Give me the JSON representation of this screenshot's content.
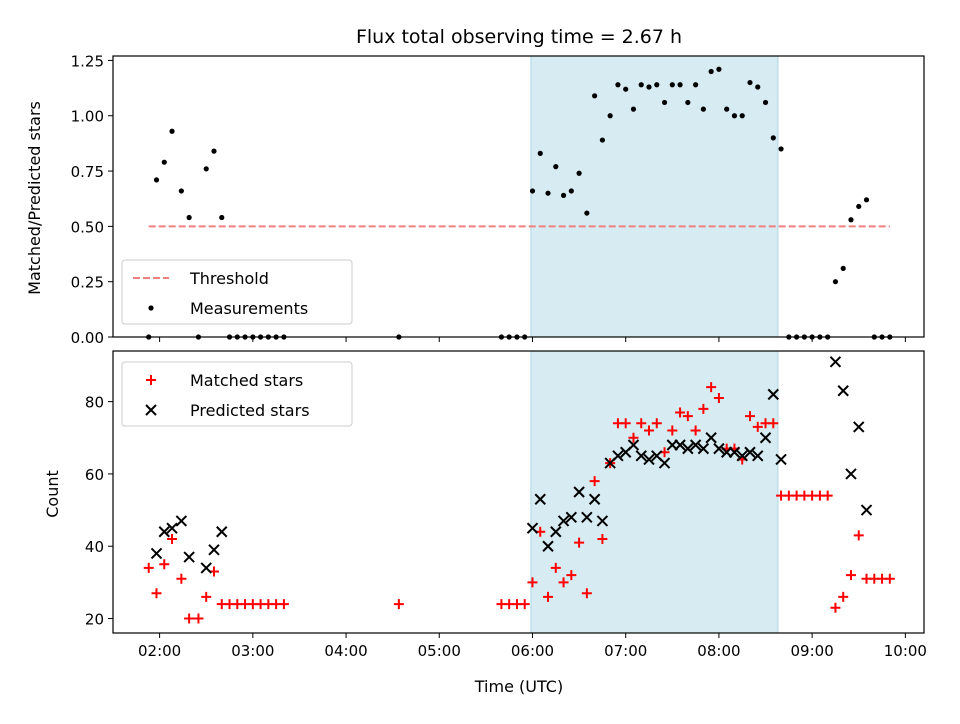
{
  "chart_data": [
    {
      "type": "scatter",
      "title": "Flux total observing time = 2.67 h",
      "ylabel": "Matched/Predicted stars",
      "ylim": [
        0,
        1.27
      ],
      "yticks": [
        "0.00",
        "0.25",
        "0.50",
        "0.75",
        "1.00",
        "1.25"
      ],
      "ytick_values": [
        0,
        0.25,
        0.5,
        0.75,
        1.0,
        1.25
      ],
      "shaded_region": [
        "05:59",
        "08:38"
      ],
      "threshold": {
        "name": "Threshold",
        "y": 0.5,
        "x_start": "01:53",
        "x_end": "09:50",
        "color": "#f08080"
      },
      "legend": [
        "Threshold",
        "Measurements"
      ],
      "legend_position": "lower-left",
      "series": [
        {
          "name": "Measurements",
          "color": "#000000",
          "points": [
            [
              "01:53",
              0
            ],
            [
              "01:58",
              0.71
            ],
            [
              "02:03",
              0.79
            ],
            [
              "02:08",
              0.93
            ],
            [
              "02:14",
              0.66
            ],
            [
              "02:19",
              0.54
            ],
            [
              "02:25",
              0
            ],
            [
              "02:30",
              0.76
            ],
            [
              "02:35",
              0.84
            ],
            [
              "02:40",
              0.54
            ],
            [
              "02:45",
              0
            ],
            [
              "02:50",
              0
            ],
            [
              "02:55",
              0
            ],
            [
              "03:00",
              0
            ],
            [
              "03:05",
              0
            ],
            [
              "03:10",
              0
            ],
            [
              "03:15",
              0
            ],
            [
              "03:20",
              0
            ],
            [
              "04:34",
              0
            ],
            [
              "05:40",
              0
            ],
            [
              "05:45",
              0
            ],
            [
              "05:50",
              0
            ],
            [
              "05:55",
              0
            ],
            [
              "06:00",
              0.66
            ],
            [
              "06:05",
              0.83
            ],
            [
              "06:10",
              0.65
            ],
            [
              "06:15",
              0.77
            ],
            [
              "06:20",
              0.64
            ],
            [
              "06:25",
              0.66
            ],
            [
              "06:30",
              0.74
            ],
            [
              "06:35",
              0.56
            ],
            [
              "06:40",
              1.09
            ],
            [
              "06:45",
              0.89
            ],
            [
              "06:50",
              1.0
            ],
            [
              "06:55",
              1.14
            ],
            [
              "07:00",
              1.12
            ],
            [
              "07:05",
              1.03
            ],
            [
              "07:10",
              1.14
            ],
            [
              "07:15",
              1.13
            ],
            [
              "07:20",
              1.14
            ],
            [
              "07:25",
              1.06
            ],
            [
              "07:30",
              1.14
            ],
            [
              "07:35",
              1.14
            ],
            [
              "07:40",
              1.06
            ],
            [
              "07:45",
              1.14
            ],
            [
              "07:50",
              1.03
            ],
            [
              "07:55",
              1.2
            ],
            [
              "08:00",
              1.21
            ],
            [
              "08:05",
              1.03
            ],
            [
              "08:10",
              1.0
            ],
            [
              "08:15",
              1.0
            ],
            [
              "08:20",
              1.15
            ],
            [
              "08:25",
              1.13
            ],
            [
              "08:30",
              1.06
            ],
            [
              "08:35",
              0.9
            ],
            [
              "08:40",
              0.85
            ],
            [
              "08:45",
              0
            ],
            [
              "08:50",
              0
            ],
            [
              "08:55",
              0
            ],
            [
              "09:00",
              0
            ],
            [
              "09:05",
              0
            ],
            [
              "09:10",
              0
            ],
            [
              "09:15",
              0.25
            ],
            [
              "09:20",
              0.31
            ],
            [
              "09:25",
              0.53
            ],
            [
              "09:30",
              0.59
            ],
            [
              "09:35",
              0.62
            ],
            [
              "09:40",
              0
            ],
            [
              "09:45",
              0
            ],
            [
              "09:50",
              0
            ]
          ]
        }
      ]
    },
    {
      "type": "scatter",
      "xlabel": "Time (UTC)",
      "ylabel": "Count",
      "ylim": [
        16,
        94
      ],
      "yticks": [
        "20",
        "40",
        "60",
        "80"
      ],
      "ytick_values": [
        20,
        40,
        60,
        80
      ],
      "xlim": [
        "01:30",
        "10:12"
      ],
      "xticks": [
        "02:00",
        "03:00",
        "04:00",
        "05:00",
        "06:00",
        "07:00",
        "08:00",
        "09:00",
        "10:00"
      ],
      "shaded_region": [
        "05:59",
        "08:38"
      ],
      "legend": [
        "Matched stars",
        "Predicted stars"
      ],
      "legend_position": "upper-left",
      "series": [
        {
          "name": "Matched stars",
          "color": "#ff0000",
          "points": [
            [
              "01:53",
              34
            ],
            [
              "01:58",
              27
            ],
            [
              "02:03",
              35
            ],
            [
              "02:08",
              42
            ],
            [
              "02:14",
              31
            ],
            [
              "02:19",
              20
            ],
            [
              "02:25",
              20
            ],
            [
              "02:30",
              26
            ],
            [
              "02:35",
              33
            ],
            [
              "02:40",
              24
            ],
            [
              "02:45",
              24
            ],
            [
              "02:50",
              24
            ],
            [
              "02:55",
              24
            ],
            [
              "03:00",
              24
            ],
            [
              "03:05",
              24
            ],
            [
              "03:10",
              24
            ],
            [
              "03:15",
              24
            ],
            [
              "03:20",
              24
            ],
            [
              "04:34",
              24
            ],
            [
              "05:40",
              24
            ],
            [
              "05:45",
              24
            ],
            [
              "05:50",
              24
            ],
            [
              "05:55",
              24
            ],
            [
              "06:00",
              30
            ],
            [
              "06:05",
              44
            ],
            [
              "06:10",
              26
            ],
            [
              "06:15",
              34
            ],
            [
              "06:20",
              30
            ],
            [
              "06:25",
              32
            ],
            [
              "06:30",
              41
            ],
            [
              "06:35",
              27
            ],
            [
              "06:40",
              58
            ],
            [
              "06:45",
              42
            ],
            [
              "06:50",
              63
            ],
            [
              "06:55",
              74
            ],
            [
              "07:00",
              74
            ],
            [
              "07:05",
              70
            ],
            [
              "07:10",
              74
            ],
            [
              "07:15",
              72
            ],
            [
              "07:20",
              74
            ],
            [
              "07:25",
              66
            ],
            [
              "07:30",
              72
            ],
            [
              "07:35",
              77
            ],
            [
              "07:40",
              76
            ],
            [
              "07:45",
              72
            ],
            [
              "07:50",
              78
            ],
            [
              "07:55",
              84
            ],
            [
              "08:00",
              81
            ],
            [
              "08:05",
              67
            ],
            [
              "08:10",
              67
            ],
            [
              "08:15",
              64
            ],
            [
              "08:20",
              76
            ],
            [
              "08:25",
              73
            ],
            [
              "08:30",
              74
            ],
            [
              "08:35",
              74
            ],
            [
              "08:40",
              54
            ],
            [
              "08:45",
              54
            ],
            [
              "08:50",
              54
            ],
            [
              "08:55",
              54
            ],
            [
              "09:00",
              54
            ],
            [
              "09:05",
              54
            ],
            [
              "09:10",
              54
            ],
            [
              "09:15",
              23
            ],
            [
              "09:20",
              26
            ],
            [
              "09:25",
              32
            ],
            [
              "09:30",
              43
            ],
            [
              "09:35",
              31
            ],
            [
              "09:40",
              31
            ],
            [
              "09:45",
              31
            ],
            [
              "09:50",
              31
            ]
          ]
        },
        {
          "name": "Predicted stars",
          "color": "#000000",
          "points": [
            [
              "01:58",
              38
            ],
            [
              "02:03",
              44
            ],
            [
              "02:08",
              45
            ],
            [
              "02:14",
              47
            ],
            [
              "02:19",
              37
            ],
            [
              "02:30",
              34
            ],
            [
              "02:35",
              39
            ],
            [
              "02:40",
              44
            ],
            [
              "06:00",
              45
            ],
            [
              "06:05",
              53
            ],
            [
              "06:10",
              40
            ],
            [
              "06:15",
              44
            ],
            [
              "06:20",
              47
            ],
            [
              "06:25",
              48
            ],
            [
              "06:30",
              55
            ],
            [
              "06:35",
              48
            ],
            [
              "06:40",
              53
            ],
            [
              "06:45",
              47
            ],
            [
              "06:50",
              63
            ],
            [
              "06:55",
              65
            ],
            [
              "07:00",
              66
            ],
            [
              "07:05",
              68
            ],
            [
              "07:10",
              65
            ],
            [
              "07:15",
              64
            ],
            [
              "07:20",
              65
            ],
            [
              "07:25",
              63
            ],
            [
              "07:30",
              68
            ],
            [
              "07:35",
              68
            ],
            [
              "07:40",
              67
            ],
            [
              "07:45",
              68
            ],
            [
              "07:50",
              67
            ],
            [
              "07:55",
              70
            ],
            [
              "08:00",
              67
            ],
            [
              "08:05",
              66
            ],
            [
              "08:10",
              66
            ],
            [
              "08:15",
              65
            ],
            [
              "08:20",
              66
            ],
            [
              "08:25",
              65
            ],
            [
              "08:30",
              70
            ],
            [
              "08:35",
              82
            ],
            [
              "08:40",
              64
            ],
            [
              "09:15",
              91
            ],
            [
              "09:20",
              83
            ],
            [
              "09:25",
              60
            ],
            [
              "09:30",
              73
            ],
            [
              "09:35",
              50
            ]
          ]
        }
      ]
    }
  ]
}
